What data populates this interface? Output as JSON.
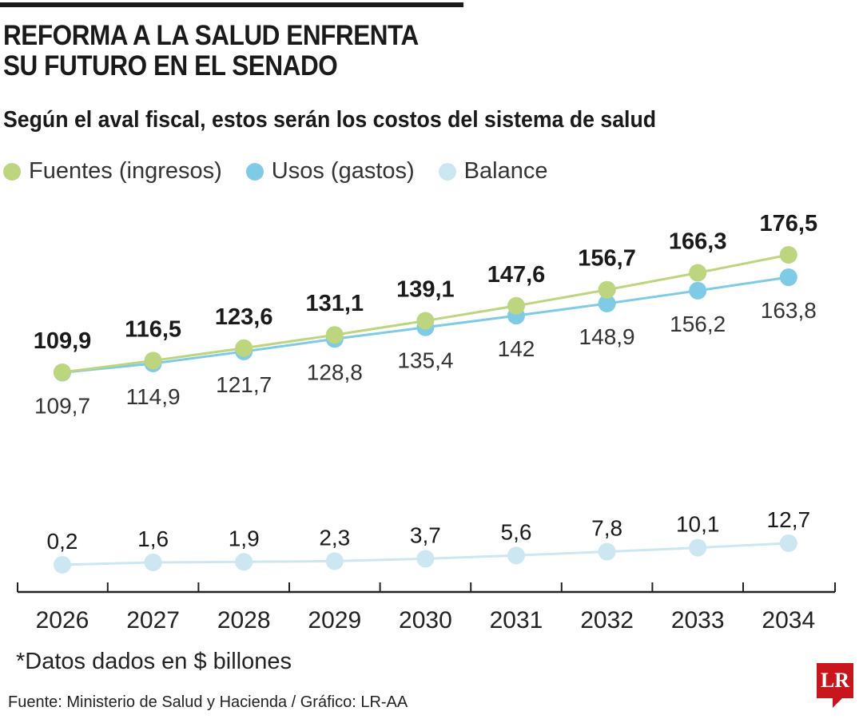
{
  "header": {
    "title_line1": "REFORMA A LA SALUD ENFRENTA",
    "title_line2": "SU FUTURO EN EL SENADO",
    "subtitle": "Según el aval fiscal, estos serán los costos del sistema de salud"
  },
  "footer": {
    "note": "*Datos dados en $ billones",
    "source": "Fuente: Ministerio de Salud y Hacienda / Gráfico: LR-AA",
    "logo": "LR"
  },
  "chart_data": {
    "type": "line",
    "title": "",
    "xlabel": "",
    "ylabel": "",
    "grid": false,
    "legend_position": "top-left",
    "categories": [
      "2026",
      "2027",
      "2028",
      "2029",
      "2030",
      "2031",
      "2032",
      "2033",
      "2034"
    ],
    "series": [
      {
        "name": "Fuentes (ingresos)",
        "color": "#bdd57f",
        "label_style": "bold-above",
        "values": [
          109.9,
          116.5,
          123.6,
          131.1,
          139.1,
          147.6,
          156.7,
          166.3,
          176.5
        ],
        "labels": [
          "109,9",
          "116,5",
          "123,6",
          "131,1",
          "139,1",
          "147,6",
          "156,7",
          "166,3",
          "176,5"
        ]
      },
      {
        "name": "Usos (gastos)",
        "color": "#7fcbe6",
        "label_style": "regular-below",
        "values": [
          109.7,
          114.9,
          121.7,
          128.8,
          135.4,
          142,
          148.9,
          156.2,
          163.8
        ],
        "labels": [
          "109,7",
          "114,9",
          "121,7",
          "128,8",
          "135,4",
          "142",
          "148,9",
          "156,2",
          "163,8"
        ]
      },
      {
        "name": "Balance",
        "color": "#cde7f2",
        "label_style": "regular-above",
        "values": [
          0.2,
          1.6,
          1.9,
          2.3,
          3.7,
          5.6,
          7.8,
          10.1,
          12.7
        ],
        "labels": [
          "0,2",
          "1,6",
          "1,9",
          "2,3",
          "3,7",
          "5,6",
          "7,8",
          "10,1",
          "12,7"
        ]
      }
    ]
  }
}
